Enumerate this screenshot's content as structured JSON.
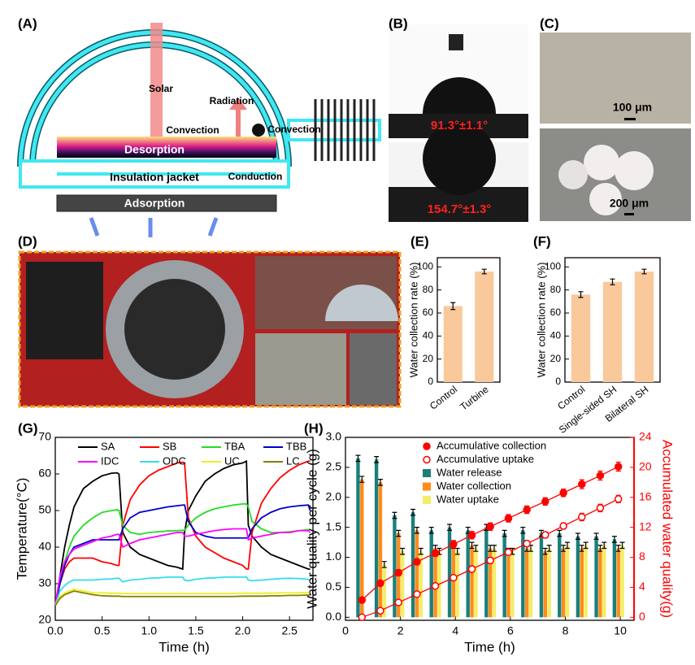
{
  "panel_labels": [
    "(A)",
    "(B)",
    "(C)",
    "(D)",
    "(E)",
    "(F)",
    "(G)",
    "(H)"
  ],
  "diagram_a": {
    "labels": [
      "Solar",
      "Radiation",
      "Convection",
      "Convection",
      "Desorption",
      "Conduction",
      "Insulation jacket",
      "Adsorption"
    ]
  },
  "photos_b": {
    "angles": [
      "91.3°±1.1°",
      "154.7°±1.3°"
    ]
  },
  "photos_c": {
    "scale_bars": [
      "100 μm",
      "200 μm"
    ]
  },
  "chart_data": [
    {
      "type": "bar",
      "ylabel": "Water collection rate (%)",
      "categories": [
        "Control",
        "Turbine"
      ],
      "values": [
        66,
        96
      ],
      "errors": [
        3,
        2
      ],
      "color": "#f9c99b",
      "ylim": [
        0,
        108
      ],
      "yticks": [
        0,
        20,
        40,
        60,
        80,
        100
      ]
    },
    {
      "type": "bar",
      "ylabel": "Water collection rate (%)",
      "categories": [
        "Control",
        "Single-sided SH",
        "Bilateral SH"
      ],
      "values": [
        76,
        87,
        96
      ],
      "errors": [
        2.5,
        2.5,
        2
      ],
      "color": "#f9c99b",
      "ylim": [
        0,
        108
      ],
      "yticks": [
        0,
        20,
        40,
        60,
        80,
        100
      ]
    },
    {
      "type": "line",
      "xlabel": "Time (h)",
      "ylabel": "Temperature(°C)",
      "legend": "top",
      "x": [
        0,
        0.05,
        0.1,
        0.15,
        0.2,
        0.3,
        0.4,
        0.5,
        0.6,
        0.66,
        0.68,
        0.72,
        0.8,
        0.9,
        1.0,
        1.1,
        1.2,
        1.3,
        1.36,
        1.38,
        1.42,
        1.5,
        1.6,
        1.7,
        1.8,
        1.9,
        2.0,
        2.04,
        2.06,
        2.1,
        2.2,
        2.3,
        2.4,
        2.5,
        2.6,
        2.7,
        2.72
      ],
      "xlim": [
        0,
        2.75
      ],
      "xticks": [
        {
          "value": 0,
          "label": "0.0"
        },
        0.5,
        {
          "value": 1,
          "label": "1.0"
        },
        1.5,
        {
          "value": 2,
          "label": "2.0"
        },
        2.5
      ],
      "ylim": [
        20,
        70
      ],
      "yticks": [
        20,
        30,
        40,
        50,
        60,
        70
      ],
      "series": [
        {
          "name": "SA",
          "color": "#000000",
          "values": [
            24,
            32,
            40,
            46,
            51,
            56,
            58,
            59.5,
            60.2,
            60.3,
            60,
            44,
            40,
            38,
            37,
            36,
            35,
            34.5,
            34,
            44,
            50,
            54,
            58,
            60,
            61.5,
            62.5,
            63,
            63.5,
            46,
            43,
            40,
            38,
            37,
            36,
            35,
            34,
            34
          ]
        },
        {
          "name": "SB",
          "color": "#ff0000",
          "values": [
            24,
            30,
            34,
            36,
            37,
            37,
            37,
            36,
            35.5,
            35,
            35,
            46,
            53,
            57,
            59.5,
            61,
            62,
            63,
            63.2,
            63,
            48,
            43,
            40,
            38.5,
            37,
            36,
            35,
            34,
            34,
            44,
            52,
            56,
            59,
            61,
            62.5,
            63.5,
            63.5
          ]
        },
        {
          "name": "TBA",
          "color": "#22dd22",
          "values": [
            24,
            30,
            36,
            40,
            43,
            46,
            48,
            49.5,
            50,
            50.2,
            50,
            46,
            44,
            43.5,
            44,
            44.2,
            44.4,
            44.5,
            44.6,
            44.6,
            46,
            48,
            49.5,
            50.5,
            51,
            51.5,
            51.8,
            51.8,
            51,
            47,
            45,
            44,
            44,
            44.2,
            44.5,
            44.8,
            44.8
          ]
        },
        {
          "name": "TBB",
          "color": "#0000cc",
          "values": [
            24,
            30,
            35,
            38,
            40,
            41,
            42,
            42,
            42,
            42,
            42,
            45,
            48,
            49.5,
            50,
            50.5,
            51,
            51.3,
            51.5,
            51.5,
            47,
            44,
            43,
            42.5,
            42.5,
            42.5,
            42.5,
            42.5,
            42.5,
            45,
            48,
            49.5,
            50.5,
            51,
            51.3,
            51.5,
            50
          ]
        },
        {
          "name": "IDC",
          "color": "#ff00ff",
          "values": [
            24,
            32,
            36,
            38,
            39.5,
            40.5,
            41.5,
            42.5,
            43,
            43.5,
            43.5,
            40,
            41,
            42,
            42.5,
            43,
            43.5,
            44,
            44,
            43,
            43,
            43.5,
            44,
            44.5,
            44.8,
            45,
            45,
            45,
            42,
            42.5,
            43,
            43.5,
            44,
            44,
            44.5,
            44.5,
            44
          ]
        },
        {
          "name": "ODC",
          "color": "#33ddee",
          "values": [
            24,
            28,
            29.5,
            30.5,
            31,
            31,
            31,
            31.2,
            31.3,
            31.5,
            31.5,
            30.5,
            31,
            31.2,
            31.5,
            31.6,
            31.8,
            31.8,
            31.8,
            31,
            30.8,
            31.2,
            31.5,
            31.6,
            31.8,
            31.8,
            31.8,
            31.8,
            31,
            30.8,
            31,
            31.2,
            31.4,
            31.5,
            31.4,
            31.2,
            31
          ]
        },
        {
          "name": "UC",
          "color": "#eeee22",
          "values": [
            24,
            26.5,
            27.5,
            28,
            28.5,
            28,
            27.5,
            27.5,
            27.4,
            27.4,
            27.4,
            27.3,
            27.3,
            27.3,
            27.3,
            27.3,
            27.3,
            27.3,
            27.3,
            27.3,
            27.3,
            27.3,
            27.3,
            27.3,
            27.3,
            27.3,
            27.4,
            27.4,
            27.4,
            27.4,
            27.4,
            27.4,
            27.5,
            27.5,
            27.5,
            27.6,
            27.6
          ]
        },
        {
          "name": "LC",
          "color": "#808000",
          "values": [
            24,
            26,
            27,
            27.5,
            28,
            27.5,
            27,
            26.7,
            26.6,
            26.6,
            26.6,
            26.5,
            26.5,
            26.5,
            26.5,
            26.5,
            26.5,
            26.5,
            26.5,
            26.5,
            26.5,
            26.5,
            26.5,
            26.5,
            26.5,
            26.5,
            26.6,
            26.6,
            26.6,
            26.6,
            26.6,
            26.7,
            26.7,
            26.8,
            26.8,
            26.9,
            26.9
          ]
        }
      ]
    },
    {
      "type": "combo",
      "xlabel": "Time (h)",
      "ylabel": "Water quality per cycle (g)",
      "y2label": "Accumulated water quality(g)",
      "y2color": "#ff0000",
      "legend": "top-left",
      "x": [
        0.6,
        1.27,
        1.93,
        2.6,
        3.27,
        3.93,
        4.6,
        5.27,
        5.93,
        6.6,
        7.27,
        7.93,
        8.6,
        9.27,
        9.93
      ],
      "xlim": [
        0,
        10.5
      ],
      "xticks": [
        0,
        2,
        4,
        6,
        8,
        10
      ],
      "ylim": [
        -0.05,
        3.0
      ],
      "yticks": [
        {
          "value": 0,
          "label": "0.0"
        },
        0.5,
        {
          "value": 1,
          "label": "1.0"
        },
        1.5,
        {
          "value": 2,
          "label": "2.0"
        },
        2.5,
        {
          "value": 3,
          "label": "3.0"
        }
      ],
      "y2lim": [
        -0.4,
        24
      ],
      "y2ticks": [
        0,
        4,
        8,
        12,
        16,
        20,
        24
      ],
      "series": [
        {
          "name": "Accumulative collection",
          "color": "#ff0000",
          "mark": "line",
          "marker": "filled",
          "axis": "y2",
          "values": [
            2.3,
            4.55,
            5.95,
            7.4,
            8.55,
            9.75,
            10.95,
            12.1,
            13.2,
            14.35,
            15.45,
            16.6,
            17.75,
            18.9,
            20.1
          ],
          "errors": [
            0.3,
            0.3,
            0.4,
            0.4,
            0.4,
            0.5,
            0.5,
            0.5,
            0.5,
            0.5,
            0.5,
            0.5,
            0.6,
            0.6,
            0.6
          ]
        },
        {
          "name": "Accumulative uptake",
          "color": "#ff0000",
          "mark": "line",
          "marker": "open",
          "axis": "y2",
          "values": [
            0,
            0.88,
            1.98,
            3.08,
            4.18,
            5.28,
            6.43,
            7.58,
            8.68,
            9.83,
            10.98,
            12.18,
            13.38,
            14.58,
            15.78
          ],
          "errors": [
            0.2,
            0.2,
            0.3,
            0.3,
            0.3,
            0.3,
            0.4,
            0.4,
            0.4,
            0.4,
            0.4,
            0.4,
            0.5,
            0.5,
            0.5
          ]
        },
        {
          "name": "Water release",
          "color": "#1a7f7a",
          "mark": "bar",
          "values": [
            2.65,
            2.63,
            1.7,
            1.75,
            1.45,
            1.5,
            1.45,
            1.5,
            1.4,
            1.45,
            1.4,
            1.4,
            1.35,
            1.35,
            1.3
          ],
          "errors": [
            0.05,
            0.05,
            0.05,
            0.05,
            0.05,
            0.05,
            0.05,
            0.05,
            0.05,
            0.05,
            0.05,
            0.05,
            0.05,
            0.05,
            0.05
          ]
        },
        {
          "name": "Water collection",
          "color": "#ff8c1a",
          "mark": "bar",
          "values": [
            2.3,
            2.25,
            1.4,
            1.45,
            1.15,
            1.2,
            1.2,
            1.15,
            1.1,
            1.15,
            1.1,
            1.15,
            1.15,
            1.15,
            1.15
          ],
          "errors": [
            0.05,
            0.05,
            0.05,
            0.05,
            0.05,
            0.05,
            0.05,
            0.05,
            0.05,
            0.05,
            0.05,
            0.05,
            0.05,
            0.05,
            0.05
          ]
        },
        {
          "name": "Water uptake",
          "color": "#f3ee66",
          "mark": "bar",
          "values": [
            null,
            0.88,
            1.1,
            1.1,
            1.1,
            1.1,
            1.15,
            1.15,
            1.1,
            1.15,
            1.15,
            1.2,
            1.2,
            1.2,
            1.2
          ],
          "errors": [
            null,
            0.05,
            0.05,
            0.05,
            0.05,
            0.05,
            0.05,
            0.05,
            0.05,
            0.05,
            0.05,
            0.05,
            0.05,
            0.05,
            0.05
          ]
        }
      ]
    }
  ]
}
